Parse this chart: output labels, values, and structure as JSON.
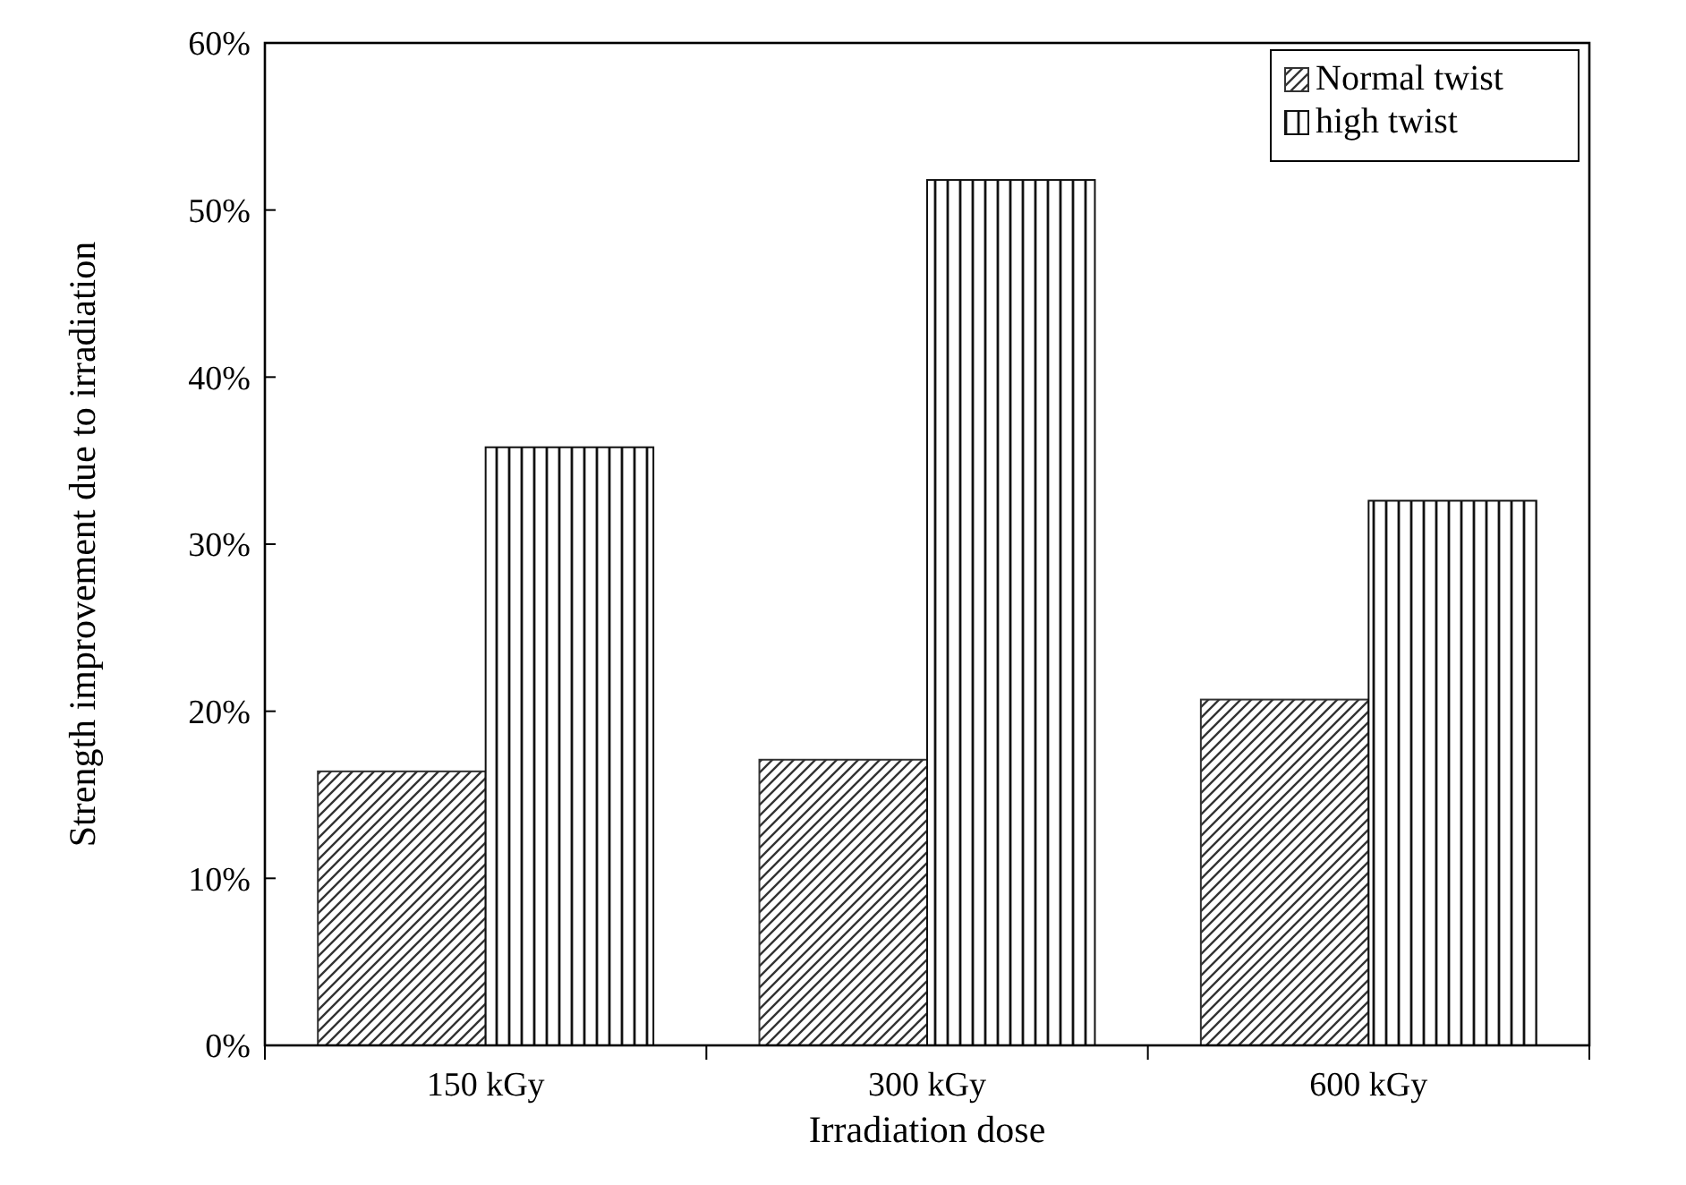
{
  "chart_data": {
    "type": "bar",
    "xlabel": "Irradiation dose",
    "ylabel": "Strength improvement due to irradiation",
    "categories": [
      "150 kGy",
      "300 kGy",
      "600 kGy"
    ],
    "series": [
      {
        "name": "Normal twist",
        "color": "#333333",
        "values": [
          16.4,
          17.1,
          20.7
        ]
      },
      {
        "name": "high twist",
        "color": "#111111",
        "values": [
          35.8,
          51.8,
          32.6
        ]
      }
    ],
    "ylim": [
      0,
      60
    ],
    "yticks": [
      {
        "value": 0,
        "label": "0%"
      },
      {
        "value": 10,
        "label": "10%"
      },
      {
        "value": 20,
        "label": "20%"
      },
      {
        "value": 30,
        "label": "30%"
      },
      {
        "value": 40,
        "label": "40%"
      },
      {
        "value": 50,
        "label": "50%"
      },
      {
        "value": 60,
        "label": "60%"
      }
    ],
    "grid": false,
    "legend": "top right"
  }
}
